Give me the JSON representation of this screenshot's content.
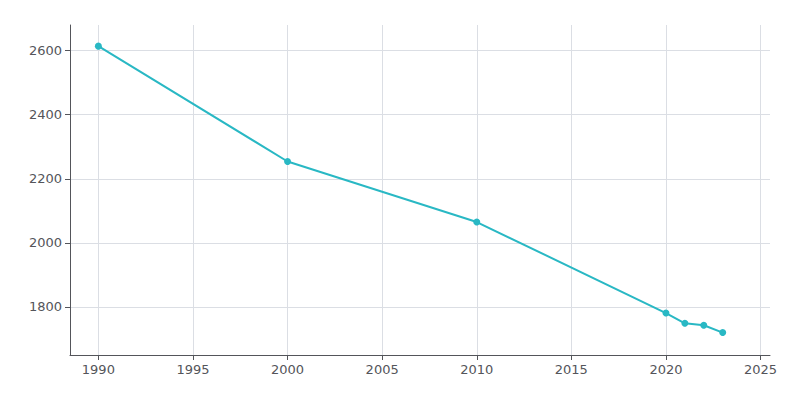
{
  "chart_data": {
    "type": "line",
    "x": [
      1990,
      2000,
      2010,
      2020,
      2021,
      2022,
      2023
    ],
    "values": [
      2614,
      2254,
      2065,
      1781,
      1749,
      1743,
      1720
    ],
    "color": "#29b8c4",
    "marker": "circle",
    "xlim": [
      1988.5,
      2025.5
    ],
    "ylim": [
      1650,
      2680
    ],
    "xticks": [
      1990,
      1995,
      2000,
      2005,
      2010,
      2015,
      2020,
      2025
    ],
    "yticks": [
      1800,
      2000,
      2200,
      2400,
      2600
    ],
    "grid": true
  }
}
